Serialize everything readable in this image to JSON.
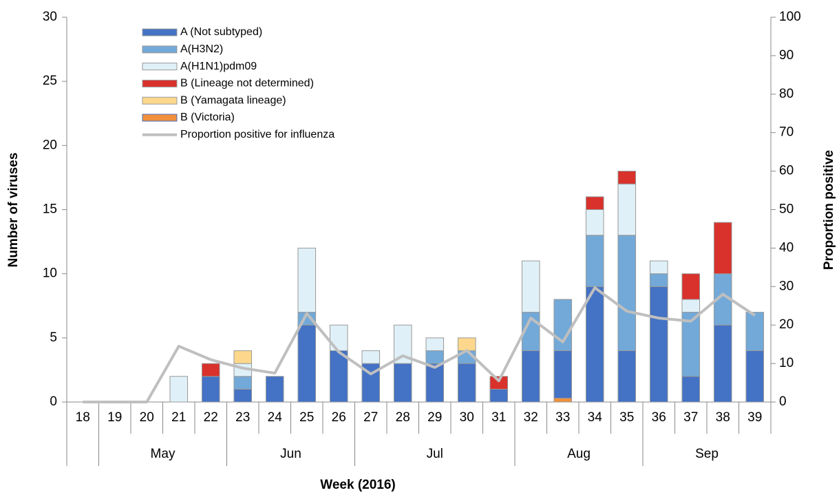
{
  "chart_data": {
    "type": "bar",
    "stacked": true,
    "x_label": "Week (2016)",
    "y_label": "Number of viruses",
    "y2_label": "Proportion positive",
    "categories": [
      "18",
      "19",
      "20",
      "21",
      "22",
      "23",
      "24",
      "25",
      "26",
      "27",
      "28",
      "29",
      "30",
      "31",
      "32",
      "33",
      "34",
      "35",
      "36",
      "37",
      "38",
      "39"
    ],
    "groups": [
      null,
      "May",
      "May",
      "May",
      "May",
      "Jun",
      "Jun",
      "Jun",
      "Jun",
      "Jul",
      "Jul",
      "Jul",
      "Jul",
      "Jul",
      "Aug",
      "Aug",
      "Aug",
      "Aug",
      "Sep",
      "Sep",
      "Sep",
      "Sep"
    ],
    "ylim": [
      0,
      30
    ],
    "yticks": [
      0,
      5,
      10,
      15,
      20,
      25,
      30
    ],
    "y2lim": [
      0,
      100
    ],
    "y2ticks": [
      0,
      10,
      20,
      30,
      40,
      50,
      60,
      70,
      80,
      90,
      100
    ],
    "series": [
      {
        "name": "B (Victoria)",
        "color": "#f0903c",
        "legend_border": "#4472c4",
        "values": [
          0,
          0,
          0,
          0,
          0,
          0,
          0,
          0,
          0,
          0,
          0,
          0,
          0,
          0,
          0,
          0.3,
          0,
          0,
          0,
          0,
          0,
          0
        ]
      },
      {
        "name": "A (Not subtyped)",
        "color": "#4472c4",
        "values": [
          0,
          0,
          0,
          0,
          2,
          1,
          2,
          6,
          4,
          3,
          3,
          3,
          3,
          1,
          4,
          3.7,
          9,
          4,
          9,
          2,
          6,
          4
        ]
      },
      {
        "name": "A(H3N2)",
        "color": "#72a9d8",
        "values": [
          0,
          0,
          0,
          0,
          0,
          1,
          0,
          1,
          0,
          0,
          0,
          1,
          1,
          0,
          3,
          4,
          4,
          9,
          1,
          5,
          4,
          3
        ]
      },
      {
        "name": "A(H1N1)pdm09",
        "color": "#dff0f8",
        "values": [
          0,
          0,
          0,
          2,
          0,
          1,
          0,
          5,
          2,
          1,
          3,
          1,
          0,
          0,
          4,
          0,
          2,
          4,
          1,
          1,
          0,
          0
        ]
      },
      {
        "name": "B (Lineage not determined)",
        "color": "#d9312b",
        "values": [
          0,
          0,
          0,
          0,
          1,
          0,
          0,
          0,
          0,
          0,
          0,
          0,
          0,
          1,
          0,
          0,
          1,
          1,
          0,
          2,
          4,
          0
        ]
      },
      {
        "name": "B (Yamagata lineage)",
        "color": "#fdd88c",
        "values": [
          0,
          0,
          0,
          0,
          0,
          1,
          0,
          0,
          0,
          0,
          0,
          0,
          1,
          0,
          0,
          0,
          0,
          0,
          0,
          0,
          0,
          0
        ]
      },
      {
        "name": "Proportion positive for influenza",
        "type": "line",
        "axis": "y2",
        "color": "#bfbfbf",
        "values": [
          0,
          0,
          0,
          14.5,
          11,
          8.8,
          7.5,
          23,
          13,
          7.3,
          12,
          9,
          13.4,
          5.5,
          21.8,
          15.6,
          29.7,
          23.6,
          21.8,
          21,
          28,
          22.5
        ]
      }
    ],
    "legend_order": [
      1,
      2,
      3,
      4,
      5,
      0,
      6
    ]
  }
}
